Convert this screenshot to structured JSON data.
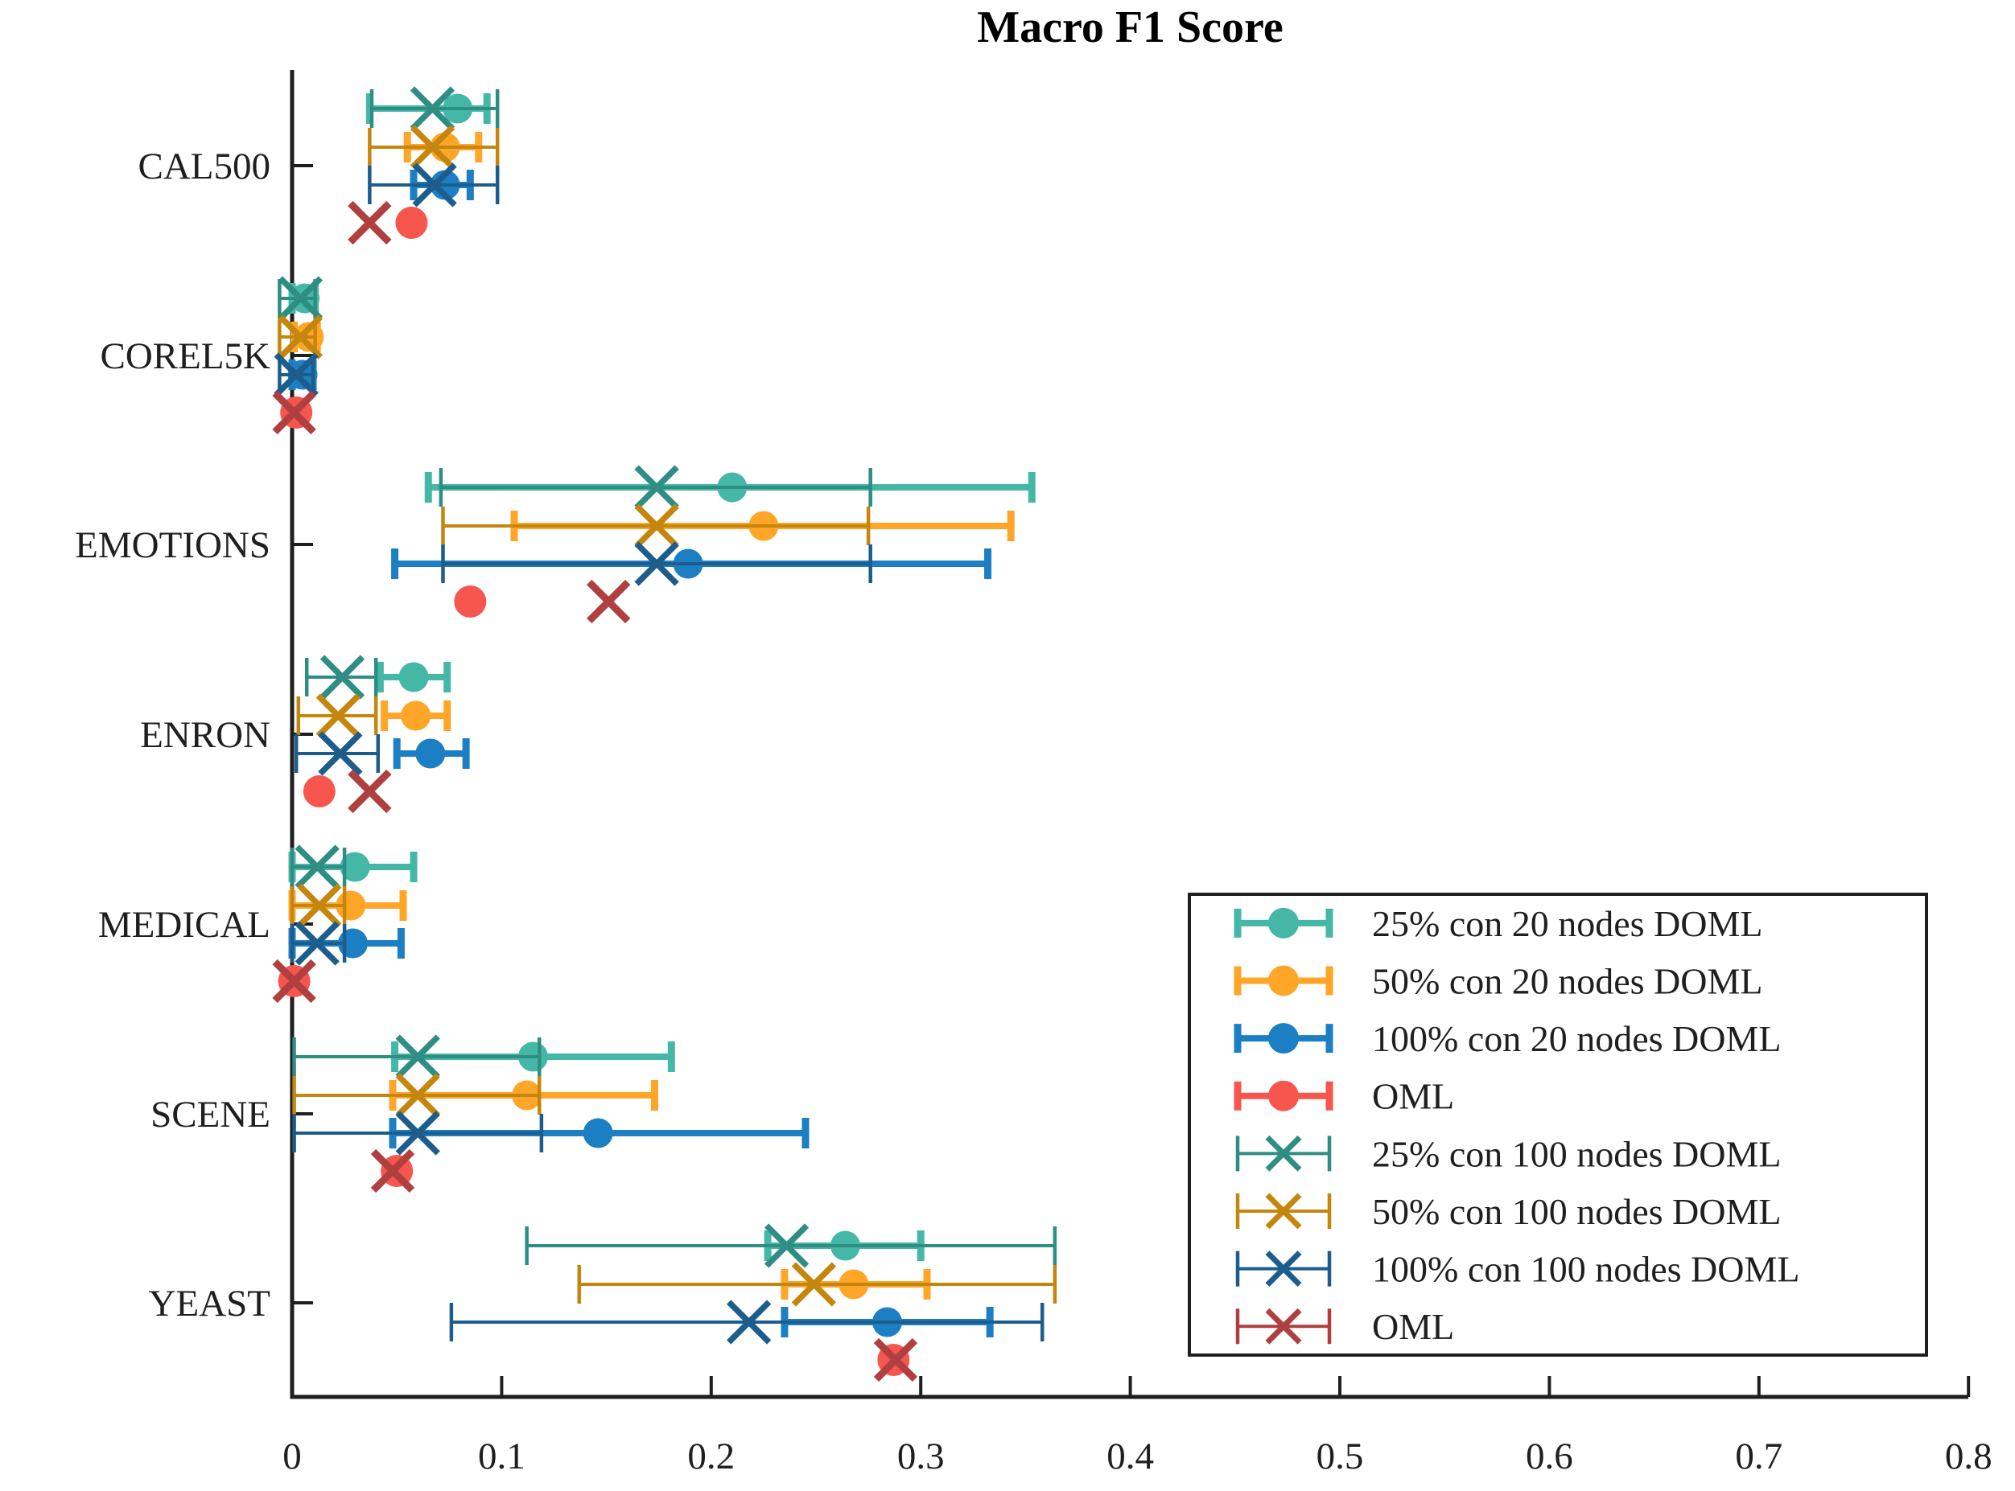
{
  "chart_data": {
    "type": "errorbar",
    "title": "Macro F1 Score",
    "xlabel": "",
    "ylabel": "",
    "xlim": [
      0,
      0.8
    ],
    "xticks": [
      {
        "value": 0.0,
        "label": "0"
      },
      {
        "value": 0.1,
        "label": "0.1"
      },
      {
        "value": 0.2,
        "label": "0.2"
      },
      {
        "value": 0.3,
        "label": "0.3"
      },
      {
        "value": 0.4,
        "label": "0.4"
      },
      {
        "value": 0.5,
        "label": "0.5"
      },
      {
        "value": 0.6,
        "label": "0.6"
      },
      {
        "value": 0.7,
        "label": "0.7"
      },
      {
        "value": 0.8,
        "label": "0.8"
      }
    ],
    "categories": [
      "CAL500",
      "COREL5K",
      "EMOTIONS",
      "ENRON",
      "MEDICAL",
      "SCENE",
      "YEAST"
    ],
    "legend_position": "lower right",
    "grid": false,
    "series": [
      {
        "name": "25% con 20 nodes DOML",
        "marker": "circle",
        "bar": "thick",
        "color": "#44B7A6",
        "row": 0,
        "points": [
          {
            "v": 0.079,
            "lo": 0.037,
            "hi": 0.093
          },
          {
            "v": 0.006,
            "lo": 0.0,
            "hi": 0.011
          },
          {
            "v": 0.21,
            "lo": 0.065,
            "hi": 0.353
          },
          {
            "v": 0.058,
            "lo": 0.042,
            "hi": 0.074
          },
          {
            "v": 0.03,
            "lo": 0.0,
            "hi": 0.058
          },
          {
            "v": 0.115,
            "lo": 0.049,
            "hi": 0.181
          },
          {
            "v": 0.264,
            "lo": 0.227,
            "hi": 0.3
          }
        ]
      },
      {
        "name": "50% con 20 nodes DOML",
        "marker": "circle",
        "bar": "thick",
        "color": "#FFA628",
        "row": 1,
        "points": [
          {
            "v": 0.073,
            "lo": 0.055,
            "hi": 0.089
          },
          {
            "v": 0.008,
            "lo": 0.001,
            "hi": 0.012
          },
          {
            "v": 0.225,
            "lo": 0.106,
            "hi": 0.343
          },
          {
            "v": 0.059,
            "lo": 0.044,
            "hi": 0.074
          },
          {
            "v": 0.028,
            "lo": 0.0,
            "hi": 0.053
          },
          {
            "v": 0.112,
            "lo": 0.048,
            "hi": 0.173
          },
          {
            "v": 0.268,
            "lo": 0.235,
            "hi": 0.303
          }
        ]
      },
      {
        "name": "100% con 20 nodes DOML",
        "marker": "circle",
        "bar": "thick",
        "color": "#1C7EC3",
        "row": 2,
        "points": [
          {
            "v": 0.073,
            "lo": 0.058,
            "hi": 0.085
          },
          {
            "v": 0.005,
            "lo": 0.0,
            "hi": 0.01
          },
          {
            "v": 0.189,
            "lo": 0.049,
            "hi": 0.332
          },
          {
            "v": 0.066,
            "lo": 0.05,
            "hi": 0.083
          },
          {
            "v": 0.029,
            "lo": 0.0,
            "hi": 0.052
          },
          {
            "v": 0.146,
            "lo": 0.048,
            "hi": 0.245
          },
          {
            "v": 0.284,
            "lo": 0.235,
            "hi": 0.333
          }
        ]
      },
      {
        "name": "OML",
        "marker": "circle",
        "bar": "none",
        "color": "#F6564E",
        "row": 3,
        "points": [
          {
            "v": 0.057,
            "lo": null,
            "hi": null
          },
          {
            "v": 0.002,
            "lo": null,
            "hi": null
          },
          {
            "v": 0.085,
            "lo": null,
            "hi": null
          },
          {
            "v": 0.013,
            "lo": null,
            "hi": null
          },
          {
            "v": 0.001,
            "lo": null,
            "hi": null
          },
          {
            "v": 0.05,
            "lo": null,
            "hi": null
          },
          {
            "v": 0.287,
            "lo": null,
            "hi": null
          }
        ]
      },
      {
        "name": "25% con 100 nodes DOML",
        "marker": "x",
        "bar": "thin",
        "color": "#2F8E83",
        "row": 0,
        "points": [
          {
            "v": 0.067,
            "lo": 0.038,
            "hi": 0.098
          },
          {
            "v": 0.004,
            "lo": -0.006,
            "hi": 0.011
          },
          {
            "v": 0.174,
            "lo": 0.071,
            "hi": 0.276
          },
          {
            "v": 0.024,
            "lo": 0.007,
            "hi": 0.04
          },
          {
            "v": 0.012,
            "lo": 0.0,
            "hi": 0.025
          },
          {
            "v": 0.06,
            "lo": 0.001,
            "hi": 0.118
          },
          {
            "v": 0.236,
            "lo": 0.112,
            "hi": 0.364
          }
        ]
      },
      {
        "name": "50% con 100 nodes DOML",
        "marker": "x",
        "bar": "thin",
        "color": "#C5860E",
        "row": 1,
        "points": [
          {
            "v": 0.067,
            "lo": 0.037,
            "hi": 0.098
          },
          {
            "v": 0.004,
            "lo": -0.006,
            "hi": 0.011
          },
          {
            "v": 0.174,
            "lo": 0.072,
            "hi": 0.275
          },
          {
            "v": 0.022,
            "lo": 0.003,
            "hi": 0.04
          },
          {
            "v": 0.013,
            "lo": 0.0,
            "hi": 0.025
          },
          {
            "v": 0.06,
            "lo": 0.001,
            "hi": 0.118
          },
          {
            "v": 0.249,
            "lo": 0.137,
            "hi": 0.364
          }
        ]
      },
      {
        "name": "100% con 100 nodes DOML",
        "marker": "x",
        "bar": "thin",
        "color": "#1D5D8C",
        "row": 2,
        "points": [
          {
            "v": 0.068,
            "lo": 0.037,
            "hi": 0.098
          },
          {
            "v": 0.002,
            "lo": -0.006,
            "hi": 0.01
          },
          {
            "v": 0.174,
            "lo": 0.072,
            "hi": 0.276
          },
          {
            "v": 0.023,
            "lo": 0.002,
            "hi": 0.041
          },
          {
            "v": 0.012,
            "lo": 0.0,
            "hi": 0.025
          },
          {
            "v": 0.06,
            "lo": 0.001,
            "hi": 0.119
          },
          {
            "v": 0.218,
            "lo": 0.076,
            "hi": 0.358
          }
        ]
      },
      {
        "name": "OML",
        "marker": "x",
        "bar": "none",
        "color": "#B04040",
        "row": 3,
        "points": [
          {
            "v": 0.037,
            "lo": null,
            "hi": null
          },
          {
            "v": 0.001,
            "lo": null,
            "hi": null
          },
          {
            "v": 0.151,
            "lo": null,
            "hi": null
          },
          {
            "v": 0.037,
            "lo": null,
            "hi": null
          },
          {
            "v": 0.001,
            "lo": null,
            "hi": null
          },
          {
            "v": 0.048,
            "lo": null,
            "hi": null
          },
          {
            "v": 0.288,
            "lo": null,
            "hi": null
          }
        ]
      }
    ],
    "axis_color": "#1f1f1f"
  }
}
